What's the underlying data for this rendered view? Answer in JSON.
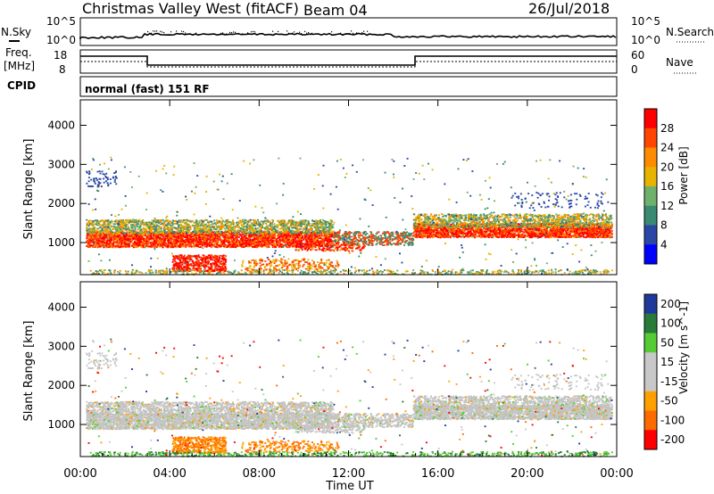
{
  "header": {
    "station": "Christmas Valley West (fitACF)",
    "beam": "Beam 04",
    "date": "26/Jul/2018"
  },
  "panel_labels": {
    "nsky": "N.Sky",
    "nsearch": "N.Search",
    "freq_line1": "Freq.",
    "freq_line2": "[MHz]",
    "nave": "Nave",
    "cpid": "CPID",
    "mode": "normal (fast) 151 RF"
  },
  "noise_axis": {
    "left": [
      "10^5",
      "10^0"
    ],
    "right": [
      "10^5",
      "10^0"
    ]
  },
  "freq_axis": {
    "left": [
      "18",
      "8"
    ],
    "right": [
      "60",
      "0"
    ]
  },
  "colors": {
    "scale_power": [
      "#0000ff",
      "#2a47a6",
      "#3a8a72",
      "#6fb06a",
      "#e6b400",
      "#ff8c00",
      "#ff4500",
      "#ff0000"
    ],
    "scale_velocity": [
      "#ff0000",
      "#ff6a00",
      "#ffa000",
      "#c8c8c8",
      "#c8c8c8",
      "#55cc33",
      "#2a7a3a",
      "#1f3a9a"
    ]
  },
  "chart_data": [
    {
      "type": "heatmap",
      "ylabel": "Slant Range [km]",
      "xlabel": "",
      "y_ticks": [
        "1000",
        "2000",
        "3000",
        "4000"
      ],
      "y_tick_values": [
        1000,
        2000,
        3000,
        4000
      ],
      "ylim": [
        180,
        4650
      ],
      "colorbar_label": "Power [dB]",
      "colorbar_ticks": [
        "4",
        "8",
        "12",
        "16",
        "20",
        "24",
        "28"
      ]
    },
    {
      "type": "heatmap",
      "ylabel": "Slant Range [km]",
      "xlabel": "Time UT",
      "y_ticks": [
        "1000",
        "2000",
        "3000",
        "4000"
      ],
      "y_tick_values": [
        1000,
        2000,
        3000,
        4000
      ],
      "ylim": [
        180,
        4650
      ],
      "colorbar_label": "Velocity [m s^-1]",
      "colorbar_ticks": [
        "200",
        "100",
        "50",
        "15",
        "-15",
        "-50",
        "-100",
        "-200"
      ],
      "x_ticks": [
        "00:00",
        "04:00",
        "08:00",
        "12:00",
        "16:00",
        "20:00",
        "00:00"
      ]
    }
  ]
}
